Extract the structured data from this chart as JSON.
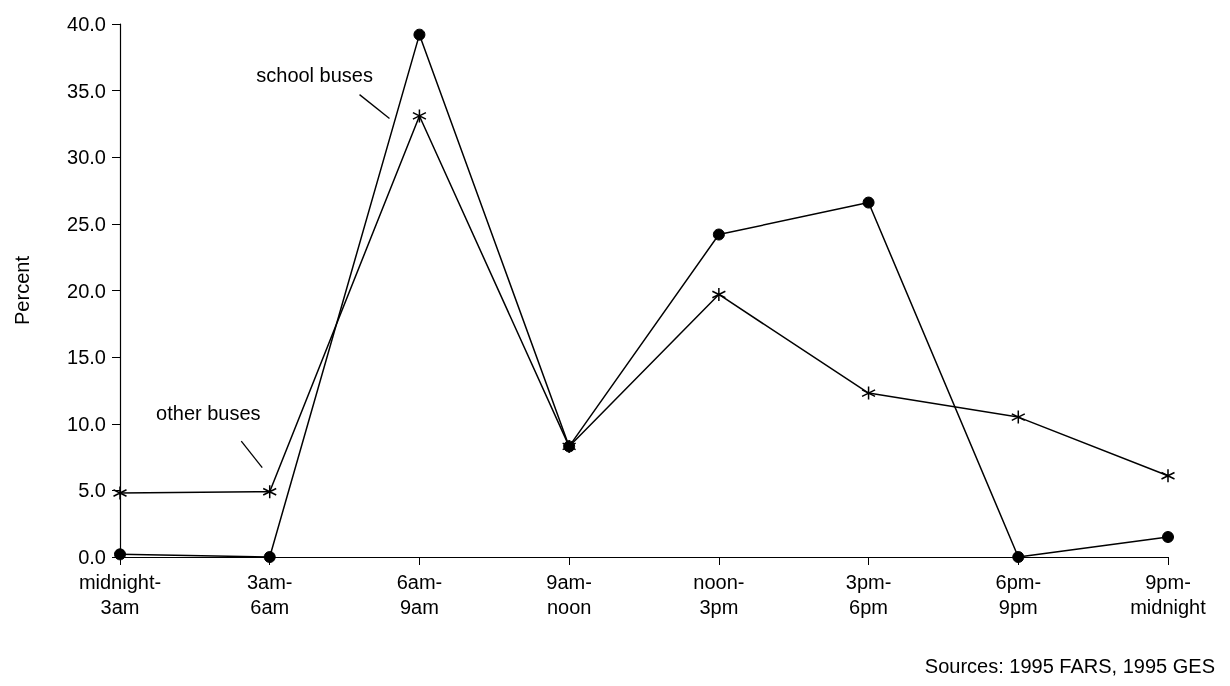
{
  "chart_data": {
    "type": "line",
    "ylabel": "Percent",
    "categories": [
      "midnight-3am",
      "3am-6am",
      "6am-9am",
      "9am-noon",
      "noon-3pm",
      "3pm-6pm",
      "6pm-9pm",
      "9pm-midnight"
    ],
    "series": [
      {
        "name": "school buses",
        "color": "#000000",
        "marker": "circle",
        "values": [
          0.2,
          0,
          39.2,
          8.3,
          24.2,
          26.6,
          0,
          1.5
        ]
      },
      {
        "name": "other buses",
        "color": "#000000",
        "marker": "cross",
        "values": [
          4.8,
          4.9,
          33.1,
          8.3,
          19.7,
          12.3,
          10.5,
          6.1
        ]
      }
    ],
    "ylim": [
      0,
      40
    ],
    "yticks": [
      {
        "value": 0,
        "label": "0.0"
      },
      {
        "value": 5,
        "label": "5.0"
      },
      {
        "value": 10,
        "label": "10.0"
      },
      {
        "value": 15,
        "label": "15.0"
      },
      {
        "value": 20,
        "label": "20.0"
      },
      {
        "value": 25,
        "label": "25.0"
      },
      {
        "value": 30,
        "label": "30.0"
      },
      {
        "value": 35,
        "label": "35.0"
      },
      {
        "value": 40,
        "label": "40.0"
      }
    ],
    "grid": false,
    "legend": false,
    "line_style": "solid",
    "annotations": [
      "Sources: 1995 FARS, 1995 GES"
    ]
  }
}
